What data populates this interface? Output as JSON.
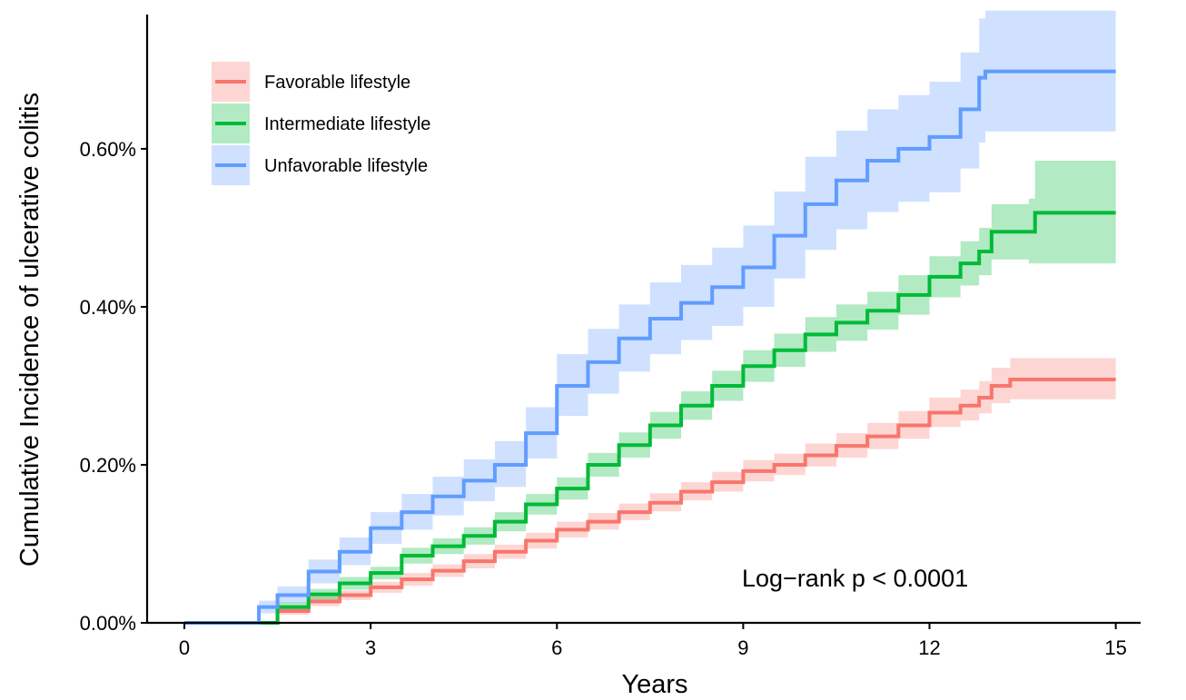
{
  "chart_data": {
    "type": "line",
    "title": "",
    "xlabel": "Years",
    "ylabel": "Cumulative Incidence of ulcerative colitis",
    "xlim": [
      -0.6,
      15.4
    ],
    "ylim": [
      0,
      0.0077
    ],
    "x_ticks": [
      0,
      3,
      6,
      9,
      12,
      15
    ],
    "x_tick_labels": [
      "0",
      "3",
      "6",
      "9",
      "12",
      "15"
    ],
    "y_ticks": [
      0,
      0.002,
      0.004,
      0.006
    ],
    "y_tick_labels": [
      "0.00%",
      "0.20%",
      "0.40%",
      "0.60%"
    ],
    "grid": false,
    "legend_position": "top-left",
    "annotation": "Log−rank   p < 0.0001",
    "series": [
      {
        "name": "Favorable lifestyle",
        "color": "#F8766D",
        "band_color": "#F8766D",
        "x": [
          0,
          1.1,
          1.5,
          2.0,
          2.5,
          3.0,
          3.5,
          4.0,
          4.5,
          5.0,
          5.5,
          6.0,
          6.5,
          7.0,
          7.5,
          8.0,
          8.5,
          9.0,
          9.5,
          10.0,
          10.5,
          11.0,
          11.5,
          12.0,
          12.5,
          12.8,
          13.0,
          13.3,
          15.0
        ],
        "y": [
          0,
          0,
          0.00015,
          0.00027,
          0.00035,
          0.00045,
          0.00055,
          0.00066,
          0.00078,
          0.0009,
          0.00104,
          0.00118,
          0.00128,
          0.0014,
          0.00152,
          0.00166,
          0.00178,
          0.00192,
          0.002,
          0.00212,
          0.00224,
          0.00236,
          0.0025,
          0.00266,
          0.00275,
          0.00285,
          0.003,
          0.00308,
          0.00308
        ],
        "lower": [
          0,
          0,
          0.0001,
          0.00021,
          0.00029,
          0.00038,
          0.00047,
          0.00058,
          0.00069,
          0.00081,
          0.00094,
          0.00108,
          0.00118,
          0.0013,
          0.00141,
          0.00155,
          0.00166,
          0.00179,
          0.00187,
          0.00198,
          0.00209,
          0.0022,
          0.00233,
          0.00248,
          0.00256,
          0.00265,
          0.00278,
          0.00283,
          0.00283
        ],
        "upper": [
          0,
          0,
          0.0002,
          0.00033,
          0.00041,
          0.00052,
          0.00063,
          0.00074,
          0.00087,
          0.00099,
          0.00114,
          0.00128,
          0.00139,
          0.00151,
          0.00164,
          0.00178,
          0.00191,
          0.00206,
          0.00214,
          0.00227,
          0.0024,
          0.00253,
          0.00268,
          0.00285,
          0.00295,
          0.00306,
          0.00323,
          0.00335,
          0.00335
        ]
      },
      {
        "name": "Intermediate lifestyle",
        "color": "#00BA38",
        "band_color": "#00BA38",
        "x": [
          0,
          1.1,
          1.5,
          2.0,
          2.5,
          3.0,
          3.5,
          4.0,
          4.5,
          5.0,
          5.5,
          6.0,
          6.5,
          7.0,
          7.5,
          8.0,
          8.5,
          9.0,
          9.5,
          10.0,
          10.5,
          11.0,
          11.5,
          12.0,
          12.5,
          12.8,
          13.0,
          13.6,
          13.7,
          15.0
        ],
        "y": [
          0,
          0,
          0.0002,
          0.00036,
          0.0005,
          0.00063,
          0.00085,
          0.00097,
          0.0011,
          0.00128,
          0.0015,
          0.0017,
          0.002,
          0.00225,
          0.0025,
          0.00275,
          0.003,
          0.00325,
          0.00345,
          0.00365,
          0.0038,
          0.00395,
          0.00415,
          0.00438,
          0.00455,
          0.0047,
          0.00495,
          0.00495,
          0.00519,
          0.00519
        ],
        "lower": [
          0,
          0,
          0.00014,
          0.00029,
          0.00042,
          0.00055,
          0.00075,
          0.00087,
          0.00099,
          0.00116,
          0.00137,
          0.00156,
          0.00185,
          0.00209,
          0.00233,
          0.00257,
          0.00281,
          0.00305,
          0.00324,
          0.00343,
          0.00357,
          0.00371,
          0.0039,
          0.00412,
          0.00427,
          0.0044,
          0.0046,
          0.00455,
          0.00455,
          0.00455
        ],
        "upper": [
          0,
          0,
          0.00026,
          0.00043,
          0.00058,
          0.00071,
          0.00095,
          0.00107,
          0.00121,
          0.0014,
          0.00163,
          0.00184,
          0.00215,
          0.00241,
          0.00267,
          0.00293,
          0.00319,
          0.00345,
          0.00366,
          0.00387,
          0.00403,
          0.00419,
          0.0044,
          0.00464,
          0.00483,
          0.005,
          0.0053,
          0.00537,
          0.00585,
          0.00585
        ]
      },
      {
        "name": "Unfavorable lifestyle",
        "color": "#619CFF",
        "band_color": "#619CFF",
        "x": [
          0,
          1.1,
          1.2,
          1.5,
          2.0,
          2.5,
          3.0,
          3.5,
          4.0,
          4.5,
          5.0,
          5.5,
          6.0,
          6.5,
          7.0,
          7.5,
          8.0,
          8.5,
          9.0,
          9.5,
          10.0,
          10.5,
          11.0,
          11.5,
          12.0,
          12.5,
          12.8,
          12.9,
          15.0
        ],
        "y": [
          0,
          0,
          0.0002,
          0.00035,
          0.00065,
          0.0009,
          0.0012,
          0.0014,
          0.0016,
          0.0018,
          0.002,
          0.0024,
          0.003,
          0.0033,
          0.0036,
          0.00385,
          0.00405,
          0.00425,
          0.0045,
          0.0049,
          0.0053,
          0.0056,
          0.00585,
          0.006,
          0.00615,
          0.0065,
          0.0069,
          0.00698,
          0.00698
        ],
        "lower": [
          0,
          0,
          0.00012,
          0.00025,
          0.0005,
          0.00073,
          0.001,
          0.00118,
          0.00136,
          0.00154,
          0.00172,
          0.00208,
          0.00262,
          0.0029,
          0.00318,
          0.0034,
          0.00358,
          0.00376,
          0.004,
          0.00436,
          0.00472,
          0.00498,
          0.0052,
          0.00533,
          0.00545,
          0.00575,
          0.00608,
          0.00622,
          0.00622
        ],
        "upper": [
          0,
          0,
          0.00028,
          0.00046,
          0.0008,
          0.00108,
          0.0014,
          0.00163,
          0.00185,
          0.00207,
          0.0023,
          0.00273,
          0.0034,
          0.00372,
          0.00403,
          0.00431,
          0.00453,
          0.00475,
          0.00503,
          0.00546,
          0.0059,
          0.00623,
          0.0065,
          0.00668,
          0.00685,
          0.00722,
          0.00765,
          0.00775,
          0.00775
        ]
      }
    ]
  }
}
